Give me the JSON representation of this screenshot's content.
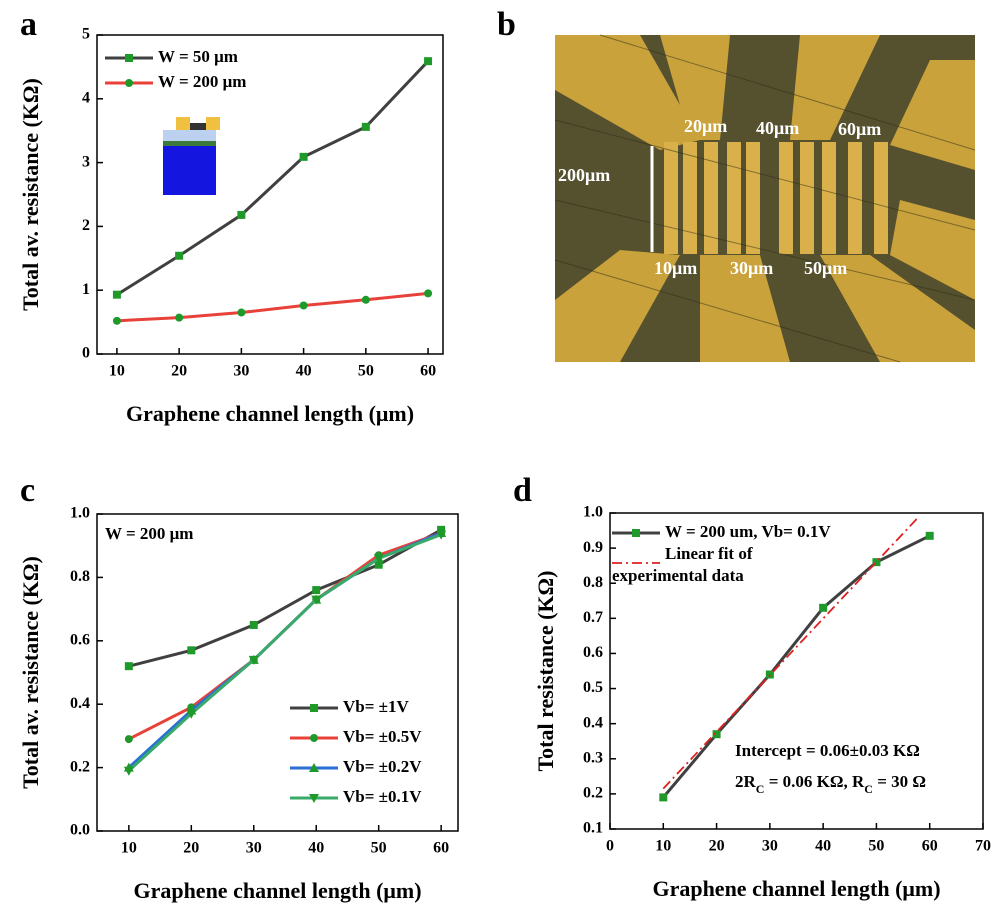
{
  "chart_data": [
    {
      "panel": "a",
      "type": "line",
      "x_label": "Graphene channel length (μm)",
      "y_label": "Total av. resistance (KΩ)",
      "x": [
        10,
        20,
        30,
        40,
        50,
        60
      ],
      "series": [
        {
          "name": "W = 50 μm",
          "color": "#404040",
          "marker_color": "#1f9a2a",
          "marker": "square",
          "values": [
            0.93,
            1.54,
            2.18,
            3.09,
            3.56,
            4.59
          ]
        },
        {
          "name": "W = 200 μm",
          "color": "#e8413a",
          "marker_color": "#1f9a2a",
          "marker": "circle",
          "values": [
            0.52,
            0.57,
            0.65,
            0.76,
            0.85,
            0.95
          ]
        }
      ],
      "xlim": [
        6.8,
        62.4
      ],
      "ylim": [
        0,
        5
      ],
      "xticks": [
        10,
        20,
        30,
        40,
        50,
        60
      ],
      "yticks": [
        0,
        1,
        2,
        3,
        4,
        5
      ],
      "legend": "top-left"
    },
    {
      "panel": "c",
      "type": "line",
      "x_label": "Graphene channel length (μm)",
      "y_label": "Total av. resistance (KΩ)",
      "x": [
        10,
        20,
        30,
        40,
        50,
        60
      ],
      "series": [
        {
          "name": "Vb= ±1V",
          "color": "#404040",
          "marker_color": "#1f9a2a",
          "marker": "square",
          "values": [
            0.52,
            0.57,
            0.65,
            0.76,
            0.84,
            0.95
          ]
        },
        {
          "name": "Vb= ±0.5V",
          "color": "#e8413a",
          "marker_color": "#1f9a2a",
          "marker": "circle",
          "values": [
            0.29,
            0.39,
            0.54,
            0.73,
            0.87,
            0.94
          ]
        },
        {
          "name": "Vb= ±0.2V",
          "color": "#2a6fd6",
          "marker_color": "#1f9a2a",
          "marker": "triangle-up",
          "values": [
            0.2,
            0.38,
            0.54,
            0.73,
            0.86,
            0.94
          ]
        },
        {
          "name": "Vb= ±0.1V",
          "color": "#3aaa6a",
          "marker_color": "#1f9a2a",
          "marker": "triangle-down",
          "values": [
            0.19,
            0.37,
            0.54,
            0.73,
            0.86,
            0.935
          ]
        }
      ],
      "xlim": [
        4.9,
        62.7
      ],
      "ylim": [
        0,
        1
      ],
      "xticks": [
        10,
        20,
        30,
        40,
        50,
        60
      ],
      "yticks": [
        {
          "value": 0,
          "label": "0.0"
        },
        0.2,
        0.4,
        0.6,
        0.8,
        {
          "value": 1,
          "label": "1.0"
        }
      ],
      "legend": "bottom-right",
      "annotations": [
        "W = 200 μm"
      ]
    },
    {
      "panel": "d",
      "type": "line",
      "x_label": "Graphene channel length (μm)",
      "y_label": "Total resistance (KΩ)",
      "x": [
        10,
        20,
        30,
        40,
        50,
        60
      ],
      "series": [
        {
          "name": "W = 200 um, Vb= 0.1V",
          "color": "#404040",
          "marker_color": "#1f9a2a",
          "marker": "square",
          "values": [
            0.19,
            0.37,
            0.54,
            0.73,
            0.86,
            0.935
          ]
        },
        {
          "name": "Linear fit of experimental data",
          "color": "#e02020",
          "style": "dashdot",
          "x": [
            10,
            58
          ],
          "values": [
            0.215,
            0.99
          ]
        }
      ],
      "xlim": [
        0,
        70
      ],
      "ylim": [
        0.1,
        1.0
      ],
      "xticks": [
        0,
        10,
        20,
        30,
        40,
        50,
        60,
        70
      ],
      "yticks": [
        0.1,
        0.2,
        0.3,
        0.4,
        0.5,
        0.6,
        0.7,
        0.8,
        0.9,
        {
          "value": 1,
          "label": "1.0"
        }
      ],
      "legend": "top-left",
      "annotations": [
        "Intercept = 0.06±0.03 KΩ"
      ],
      "annotation_parts": [
        "2R",
        "C",
        " = 0.06 KΩ, R",
        "C",
        " = 30 Ω"
      ]
    }
  ],
  "image_panel": {
    "panel": "b",
    "labels": [
      "200μm",
      "20μm",
      "40μm",
      "60μm",
      "10μm",
      "30μm",
      "50μm"
    ]
  }
}
